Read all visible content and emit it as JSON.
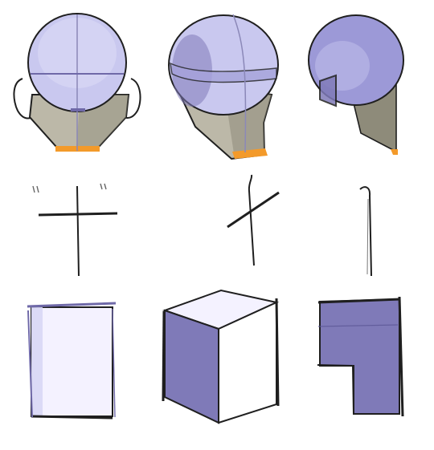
{
  "title": "",
  "palette": {
    "paper": "#ffffff",
    "ink": "#1f1f1f",
    "lavender": "#c9c8ef",
    "lavender_light": "#e8e7fb",
    "violet": "#7f7ab8",
    "violet_dark": "#6f69a8",
    "jaw_gray": "#bcb8a8",
    "jaw_gray_dark": "#8e8b7a",
    "accent_orange": "#f39a2a"
  },
  "rows": [
    {
      "name": "head-studies",
      "items": [
        "front-view",
        "three-quarter-view",
        "side-view"
      ]
    },
    {
      "name": "axis-studies",
      "items": [
        "front-axis",
        "three-quarter-axis",
        "side-axis"
      ]
    },
    {
      "name": "box-studies",
      "items": [
        "front-box",
        "three-quarter-box",
        "side-box"
      ]
    }
  ],
  "icons": {
    "head": "head-icon",
    "axis": "axis-icon",
    "box": "box-icon"
  }
}
